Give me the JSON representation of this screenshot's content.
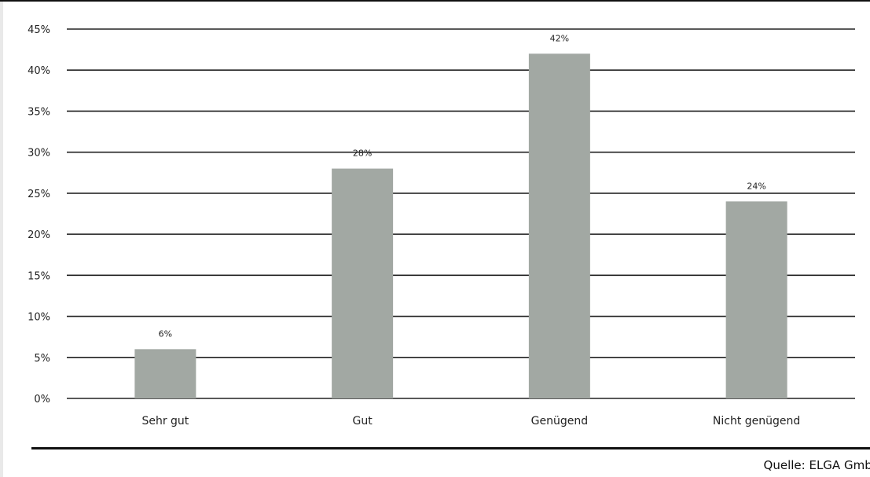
{
  "chart_data": {
    "type": "bar",
    "categories": [
      "Sehr gut",
      "Gut",
      "Genügend",
      "Nicht genügend"
    ],
    "values": [
      6,
      28,
      42,
      24
    ],
    "value_labels": [
      "6%",
      "28%",
      "42%",
      "24%"
    ],
    "title": "",
    "xlabel": "",
    "ylabel": "",
    "ylim": [
      0,
      45
    ],
    "yticks": [
      0,
      5,
      10,
      15,
      20,
      25,
      30,
      35,
      40,
      45
    ],
    "ytick_labels": [
      "0%",
      "5%",
      "10%",
      "15%",
      "20%",
      "25%",
      "30%",
      "35%",
      "40%",
      "45%"
    ],
    "grid": true,
    "legend": "none",
    "bar_color": "#a2a8a3",
    "grid_color": "#222222"
  },
  "source": "Quelle: ELGA GmbH"
}
